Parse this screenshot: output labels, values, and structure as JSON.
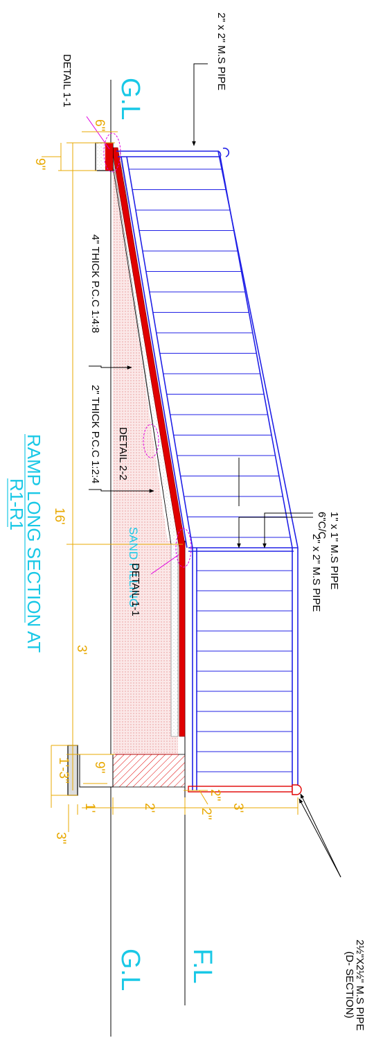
{
  "labels": {
    "pipe_top": "2\" x 2\" M.S PIPE",
    "detail_top": "DETAIL 1-1",
    "gl_top": "G.L",
    "dim_6in": "6\"",
    "dim_9in_top": "9\"",
    "pcc_4in": "4\" THICK P.C.C 1:4:8",
    "pcc_2in": "2\" THICK P.C.C 1:2:4",
    "detail_mid": "DETAIL 2-2",
    "title_line1": "RAMP  LONG SECTION  AT",
    "title_line2": "R1-R1",
    "baluster_1": "1\" x 1\" M.S PIPE",
    "baluster_2": "6\"C/C",
    "dim_16ft": "16'",
    "sand_filling": "SAND FILLING",
    "pipe_mid": "2\" x 2\" M.S PIPE",
    "detail_bottom": "DETAIL 1-1",
    "dim_3ft_left": "3'",
    "dim_1ft3in": "1'-3\"",
    "dim_9in_footing": "9\"",
    "dim_2in_a": "2\"",
    "dim_2in_b": "2\"",
    "dim_1ft": "1'",
    "dim_2ft": "2'",
    "dim_3ft_bottom": "3'",
    "dim_3in": "3\"",
    "gl_bottom": "G.L",
    "fl_bottom": "F.L",
    "d_section_1": "2½\"X2½\" M.S PIPE",
    "d_section_2": "(D- SECTION)"
  },
  "colors": {
    "structure": "#2020e6",
    "slab": "#e00000",
    "dimension": "#e8a800",
    "annotation": "#19c8e6",
    "detail_marker": "#e000e0",
    "sand": "#f6d6d6"
  }
}
